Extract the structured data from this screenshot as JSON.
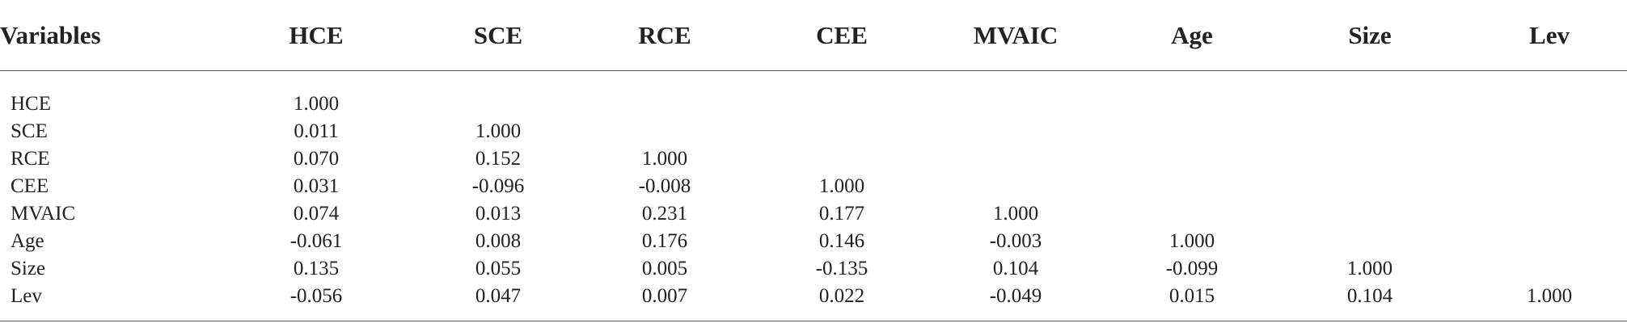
{
  "table": {
    "header": [
      "Variables",
      "HCE",
      "SCE",
      "RCE",
      "CEE",
      "MVAIC",
      "Age",
      "Size",
      "Lev"
    ],
    "rows": [
      [
        "HCE",
        "1.000"
      ],
      [
        "SCE",
        "0.011",
        "1.000"
      ],
      [
        "RCE",
        "0.070",
        "0.152",
        "1.000"
      ],
      [
        "CEE",
        "0.031",
        "-0.096",
        "-0.008",
        "1.000"
      ],
      [
        "MVAIC",
        "0.074",
        "0.013",
        "0.231",
        "0.177",
        "1.000"
      ],
      [
        "Age",
        "-0.061",
        "0.008",
        "0.176",
        "0.146",
        "-0.003",
        "1.000"
      ],
      [
        "Size",
        "0.135",
        "0.055",
        "0.005",
        "-0.135",
        "0.104",
        "-0.099",
        "1.000"
      ],
      [
        "Lev",
        "-0.056",
        "0.047",
        "0.007",
        "0.022",
        "-0.049",
        "0.015",
        "0.104",
        "1.000"
      ]
    ]
  }
}
